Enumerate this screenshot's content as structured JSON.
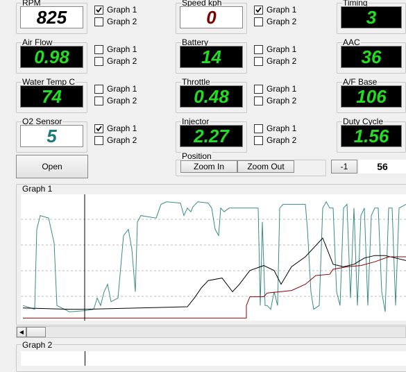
{
  "gauges": [
    {
      "label": "RPM",
      "value": 825,
      "display": "light",
      "color": "#000000",
      "checks": [
        {
          "label": "Graph 1",
          "checked": true
        },
        {
          "label": "Graph 2",
          "checked": false
        }
      ]
    },
    {
      "label": "Speed kph",
      "value": 0,
      "display": "light",
      "color": "#7a0000",
      "checks": [
        {
          "label": "Graph 1",
          "checked": true
        },
        {
          "label": "Graph 2",
          "checked": false
        }
      ]
    },
    {
      "label": "Timing",
      "value": 3,
      "display": "dark",
      "color": "#22dd22"
    },
    {
      "label": "Air Flow",
      "value": 0.98,
      "display": "dark",
      "color": "#22dd22",
      "checks": [
        {
          "label": "Graph 1",
          "checked": false
        },
        {
          "label": "Graph 2",
          "checked": false
        }
      ]
    },
    {
      "label": "Battery",
      "value": 14,
      "display": "dark",
      "color": "#22dd22",
      "checks": [
        {
          "label": "Graph 1",
          "checked": false
        },
        {
          "label": "Graph 2",
          "checked": false
        }
      ]
    },
    {
      "label": "AAC",
      "value": 36,
      "display": "dark",
      "color": "#22dd22"
    },
    {
      "label": "Water Temp C",
      "value": 74,
      "display": "dark",
      "color": "#22dd22",
      "checks": [
        {
          "label": "Graph 1",
          "checked": false
        },
        {
          "label": "Graph 2",
          "checked": false
        }
      ]
    },
    {
      "label": "Throttle",
      "value": 0.48,
      "display": "dark",
      "color": "#22dd22",
      "checks": [
        {
          "label": "Graph 1",
          "checked": false
        },
        {
          "label": "Graph 2",
          "checked": false
        }
      ]
    },
    {
      "label": "A/F Base",
      "value": 106,
      "display": "dark",
      "color": "#22dd22"
    },
    {
      "label": "O2 Sensor",
      "value": 5,
      "display": "light",
      "color": "#1a7a7a",
      "checks": [
        {
          "label": "Graph 1",
          "checked": true
        },
        {
          "label": "Graph 2",
          "checked": false
        }
      ]
    },
    {
      "label": "Injector",
      "value": 2.27,
      "display": "dark",
      "color": "#22dd22",
      "checks": [
        {
          "label": "Graph 1",
          "checked": false
        },
        {
          "label": "Graph 2",
          "checked": false
        }
      ]
    },
    {
      "label": "Duty Cycle",
      "value": 1.56,
      "display": "dark",
      "color": "#22dd22"
    }
  ],
  "open_button": "Open",
  "position": {
    "title": "Position",
    "zoom_in": "Zoom In",
    "zoom_out": "Zoom Out",
    "step": "-1",
    "index": 56
  },
  "graph1": {
    "title": "Graph 1",
    "xlim": [
      0,
      555
    ],
    "ylim": [
      0,
      100
    ],
    "series": [
      {
        "color": "#3a8a8a",
        "x": [
          3,
          20,
          23,
          28,
          40,
          48,
          52,
          70,
          95,
          105,
          110,
          115,
          120,
          125,
          130,
          140,
          148,
          155,
          160,
          165,
          168,
          173,
          195,
          202,
          210,
          230,
          235,
          240,
          245,
          248,
          255,
          270,
          275,
          280,
          285,
          288,
          293,
          300,
          342,
          345,
          348,
          352,
          355,
          360,
          365,
          370,
          373,
          378,
          390,
          410,
          413,
          418,
          422,
          430,
          435,
          440,
          445,
          450,
          455,
          460,
          465,
          470,
          475,
          480,
          485,
          490,
          495,
          500,
          505,
          510,
          515,
          520,
          525,
          530,
          535,
          540,
          545,
          555
        ],
        "values": [
          11,
          8,
          72,
          83,
          81,
          61,
          11,
          6,
          7,
          8,
          17,
          11,
          22,
          28,
          14,
          17,
          67,
          72,
          56,
          22,
          78,
          83,
          81,
          92,
          94,
          93,
          83,
          89,
          86,
          90,
          94,
          93,
          89,
          72,
          67,
          89,
          86,
          89,
          89,
          11,
          78,
          11,
          11,
          8,
          22,
          11,
          89,
          92,
          92,
          92,
          72,
          22,
          8,
          11,
          89,
          94,
          89,
          89,
          22,
          11,
          89,
          92,
          17,
          89,
          11,
          83,
          89,
          11,
          83,
          89,
          89,
          22,
          6,
          89,
          89,
          11,
          89,
          92
        ]
      },
      {
        "color": "#000000",
        "x": [
          3,
          70,
          90,
          170,
          240,
          250,
          260,
          270,
          290,
          305,
          315,
          330,
          350,
          365,
          375,
          390,
          410,
          435,
          450,
          465,
          480,
          495,
          510,
          525,
          540,
          555
        ],
        "values": [
          9,
          8,
          8,
          9,
          10,
          17,
          25,
          31,
          33,
          22,
          28,
          39,
          43,
          39,
          28,
          42,
          50,
          65,
          44,
          42,
          44,
          49,
          51,
          51,
          49,
          47
        ]
      },
      {
        "color": "#8b0000",
        "x": [
          3,
          325,
          325,
          330,
          350,
          355,
          390,
          410,
          425,
          445,
          450,
          470,
          490,
          510,
          530,
          555
        ],
        "values": [
          1,
          1,
          11,
          18,
          18,
          21,
          23,
          28,
          35,
          36,
          40,
          42,
          43,
          46,
          50,
          50
        ]
      }
    ]
  },
  "graph2": {
    "title": "Graph 2"
  }
}
